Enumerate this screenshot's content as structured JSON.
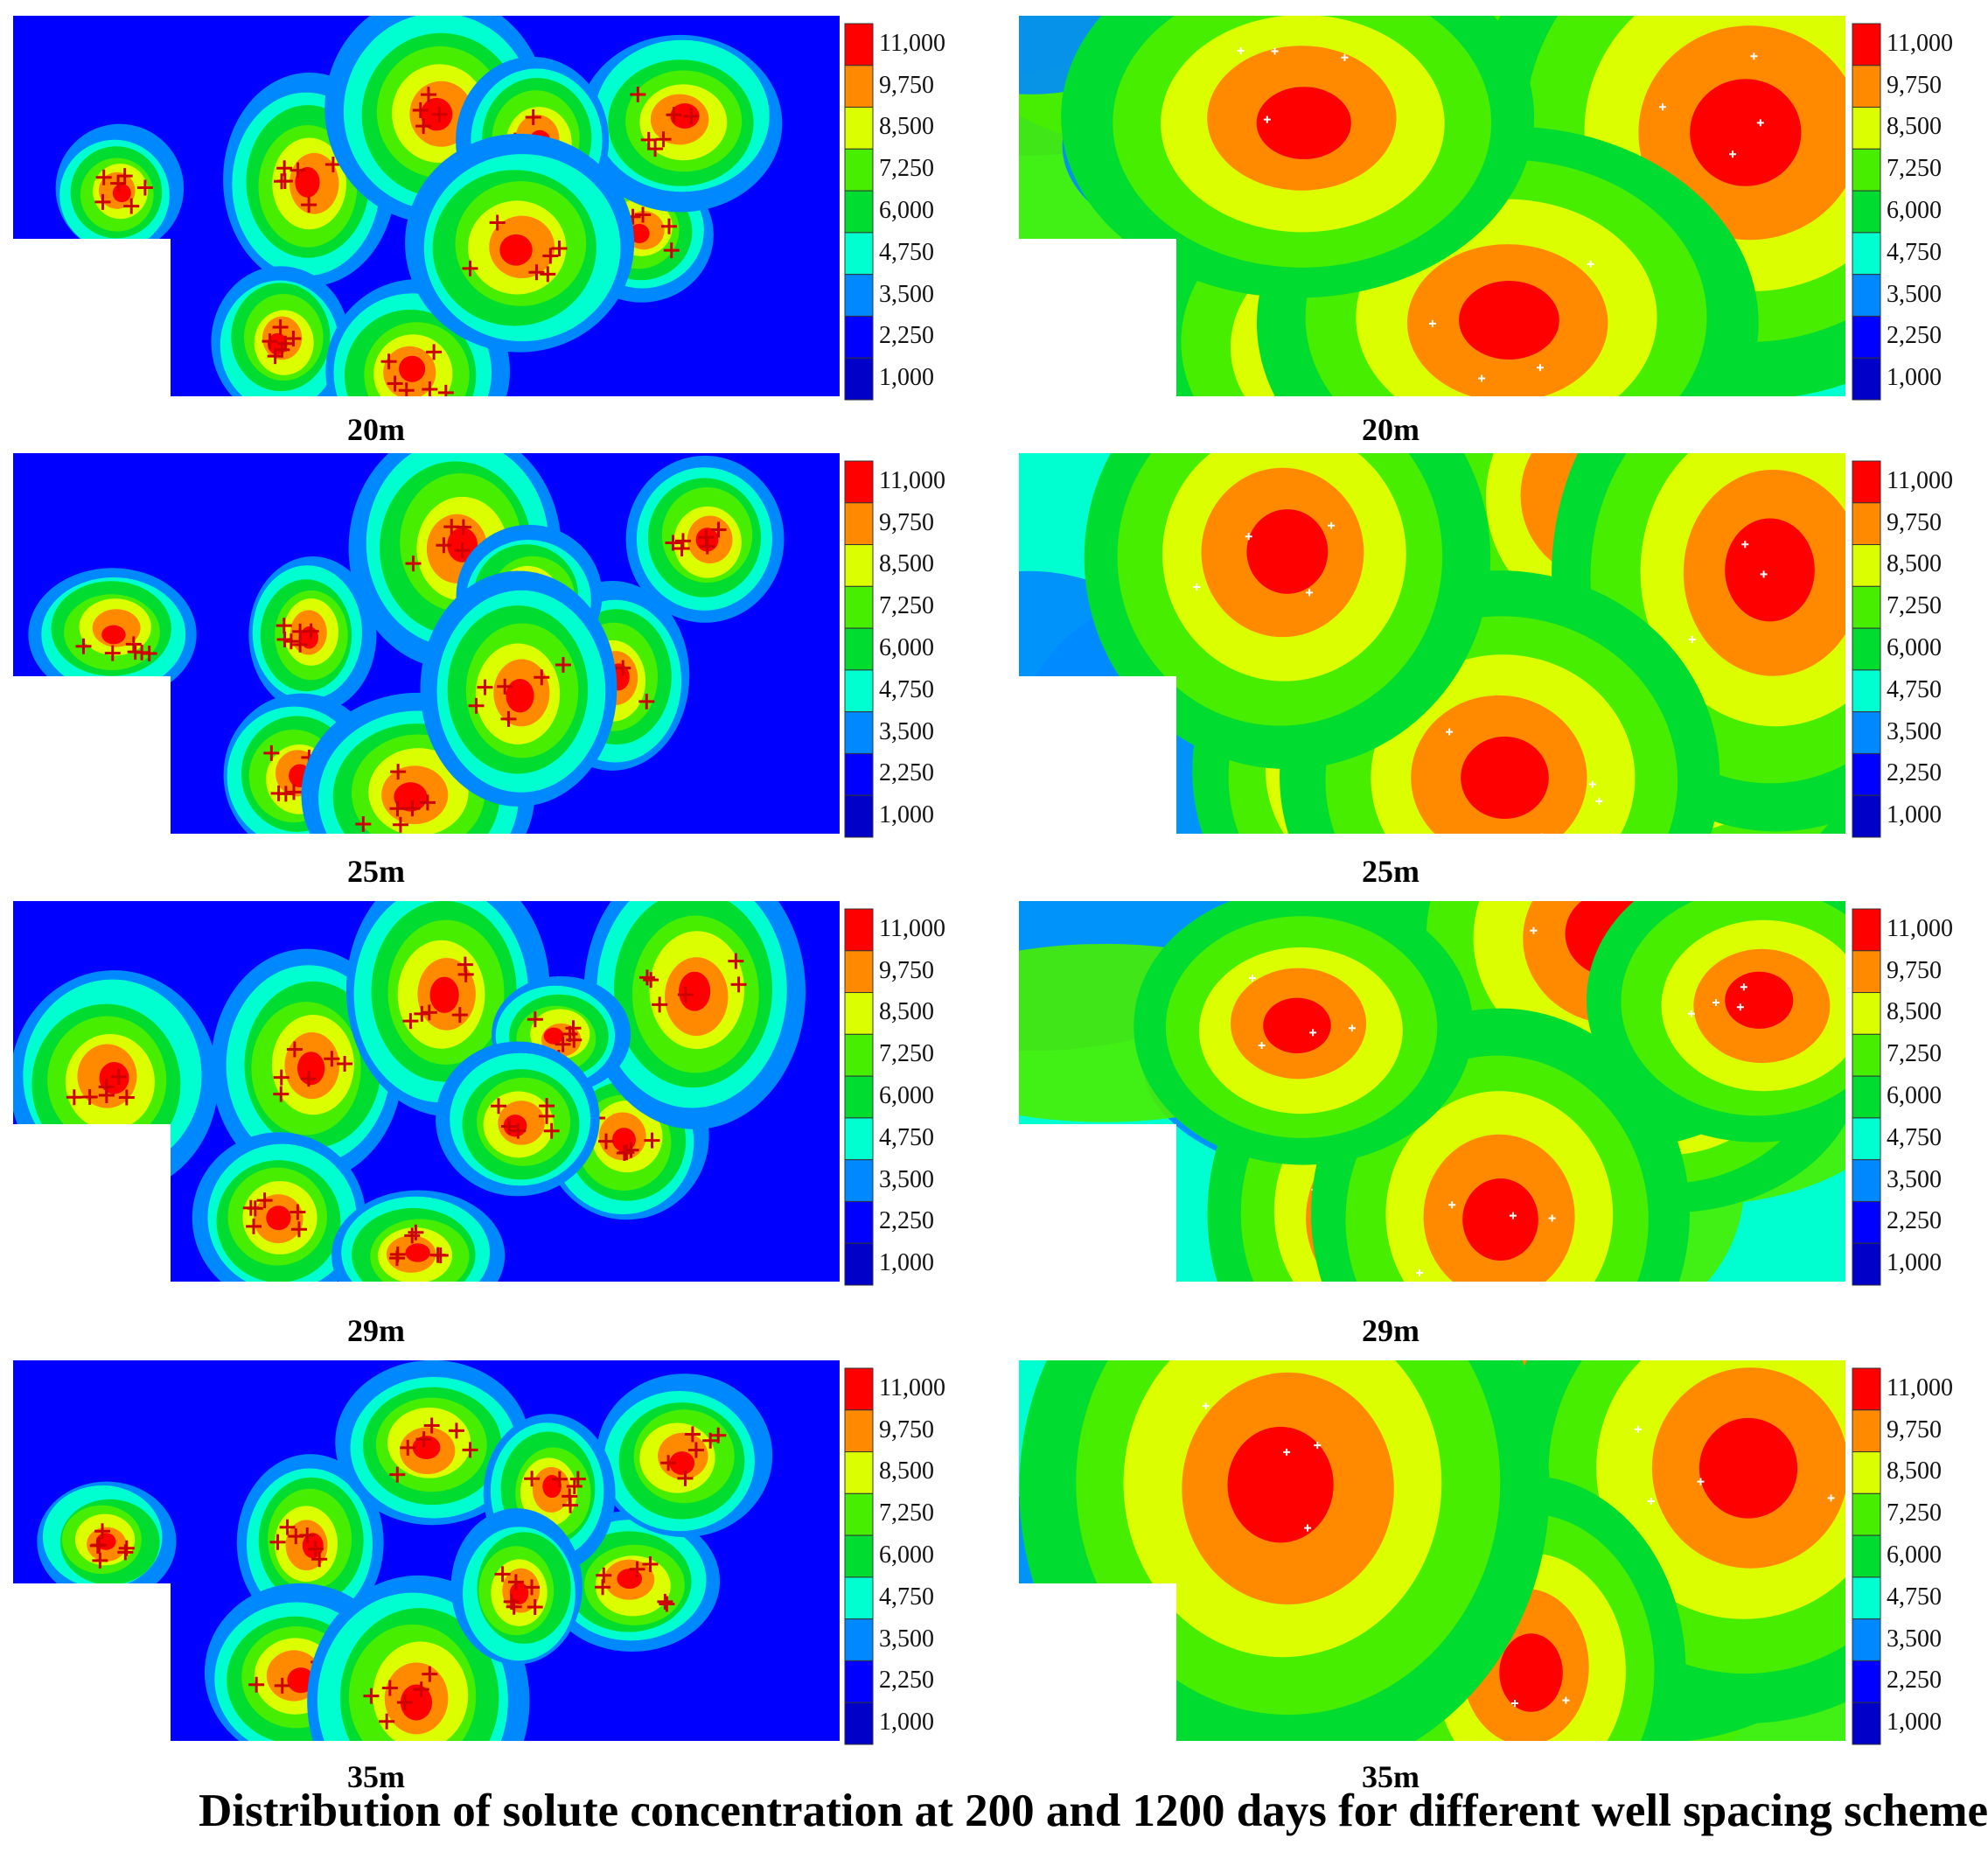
{
  "title": "Distribution of solute concentration at 200 and 1200 days for different well spacing scheme",
  "colorbar": {
    "labels": [
      "11,000",
      "9,750",
      "8,500",
      "7,250",
      "6,000",
      "4,750",
      "3,500",
      "2,250",
      "1,000"
    ],
    "colors": [
      "#ff0000",
      "#ff8a00",
      "#dcff00",
      "#48ee00",
      "#00dd30",
      "#00ffd0",
      "#0088ff",
      "#0000ff",
      "#0000c8"
    ]
  },
  "background_color": "#0000ff",
  "panels": [
    {
      "caption": "20m",
      "time": "200 days"
    },
    {
      "caption": "20m",
      "time": "1200 days"
    },
    {
      "caption": "25m",
      "time": "200 days"
    },
    {
      "caption": "25m",
      "time": "1200 days"
    },
    {
      "caption": "29m",
      "time": "200 days"
    },
    {
      "caption": "29m",
      "time": "1200 days"
    },
    {
      "caption": "35m",
      "time": "200 days"
    },
    {
      "caption": "35m",
      "time": "1200 days"
    }
  ]
}
